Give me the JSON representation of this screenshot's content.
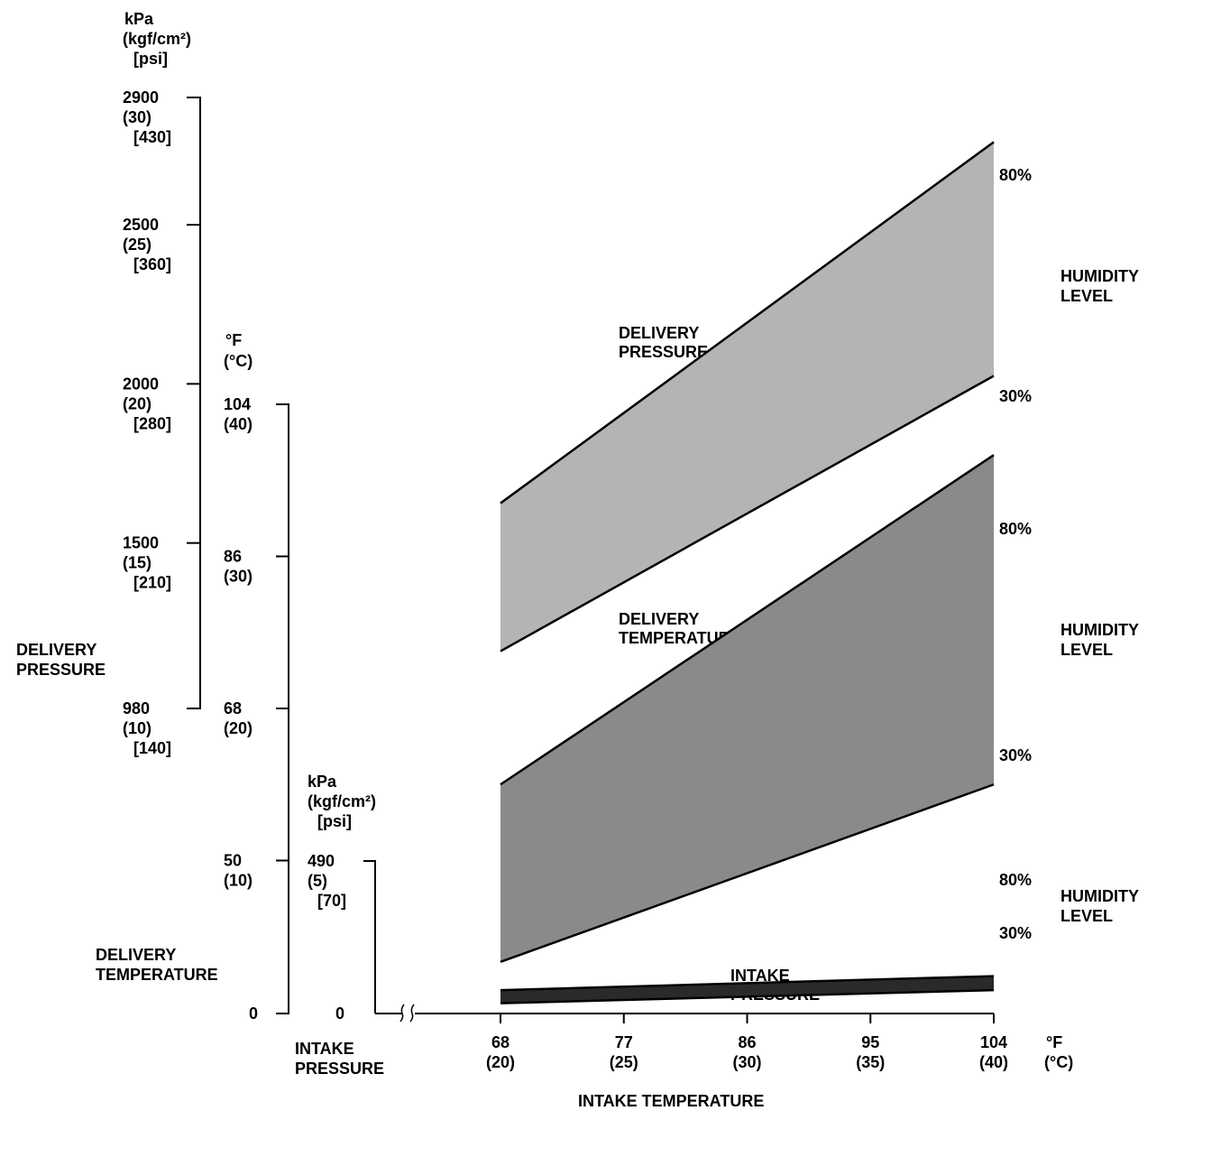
{
  "chart_data": {
    "type": "area",
    "x_axis": {
      "label": "INTAKE TEMPERATURE",
      "unit_f": "°F",
      "unit_c": "(°C)",
      "ticks": [
        {
          "f": "68",
          "c": "(20)",
          "value": 68
        },
        {
          "f": "77",
          "c": "(25)",
          "value": 77
        },
        {
          "f": "86",
          "c": "(30)",
          "value": 86
        },
        {
          "f": "95",
          "c": "(35)",
          "value": 95
        },
        {
          "f": "104",
          "c": "(40)",
          "value": 104
        }
      ],
      "xlim": [
        68,
        104
      ]
    },
    "delivery_pressure_axis": {
      "label_line1": "DELIVERY",
      "label_line2": "PRESSURE",
      "unit1": "kPa",
      "unit2": "(kgf/cm²)",
      "unit3": "[psi]",
      "ticks": [
        {
          "kpa": "2900",
          "kgf": "(30)",
          "psi": "[430]",
          "value": 2900
        },
        {
          "kpa": "2500",
          "kgf": "(25)",
          "psi": "[360]",
          "value": 2500
        },
        {
          "kpa": "2000",
          "kgf": "(20)",
          "psi": "[280]",
          "value": 2000
        },
        {
          "kpa": "1500",
          "kgf": "(15)",
          "psi": "[210]",
          "value": 1500
        },
        {
          "kpa": "980",
          "kgf": "(10)",
          "psi": "[140]",
          "value": 980
        }
      ],
      "zero": "0"
    },
    "delivery_temperature_axis": {
      "label_line1": "DELIVERY",
      "label_line2": "TEMPERATURE",
      "unit_f": "°F",
      "unit_c": "(°C)",
      "ticks": [
        {
          "f": "104",
          "c": "(40)",
          "value": 104
        },
        {
          "f": "86",
          "c": "(30)",
          "value": 86
        },
        {
          "f": "68",
          "c": "(20)",
          "value": 68
        },
        {
          "f": "50",
          "c": "(10)",
          "value": 50
        }
      ]
    },
    "intake_pressure_axis": {
      "label_line1": "INTAKE",
      "label_line2": "PRESSURE",
      "unit1": "kPa",
      "unit2": "(kgf/cm²)",
      "unit3": "[psi]",
      "ticks": [
        {
          "kpa": "490",
          "kgf": "(5)",
          "psi": "[70]",
          "value": 490
        }
      ],
      "zero": "0"
    },
    "series": [
      {
        "name_line1": "DELIVERY",
        "name_line2": "PRESSURE",
        "color": "#b4b4b4",
        "axis": "delivery_pressure",
        "x": [
          68,
          104
        ],
        "high_80": [
          1625,
          2760
        ],
        "low_30": [
          1160,
          2025
        ],
        "high_label": "80%",
        "low_label": "30%",
        "humidity_line1": "HUMIDITY",
        "humidity_line2": "LEVEL"
      },
      {
        "name_line1": "DELIVERY",
        "name_line2": "TEMPERATURE",
        "color": "#8a8a8a",
        "axis": "delivery_temperature",
        "x": [
          68,
          104
        ],
        "high_80": [
          59,
          98
        ],
        "low_30": [
          38,
          59
        ],
        "high_label": "80%",
        "low_label": "30%",
        "humidity_line1": "HUMIDITY",
        "humidity_line2": "LEVEL"
      },
      {
        "name_line1": "INTAKE",
        "name_line2": "PRESSURE",
        "color": "#2a2a2a",
        "axis": "intake_pressure",
        "x": [
          68,
          104
        ],
        "high_80": [
          75,
          120
        ],
        "low_30": [
          33,
          75
        ],
        "high_label": "80%",
        "low_label": "30%",
        "humidity_line1": "HUMIDITY",
        "humidity_line2": "LEVEL"
      }
    ]
  }
}
